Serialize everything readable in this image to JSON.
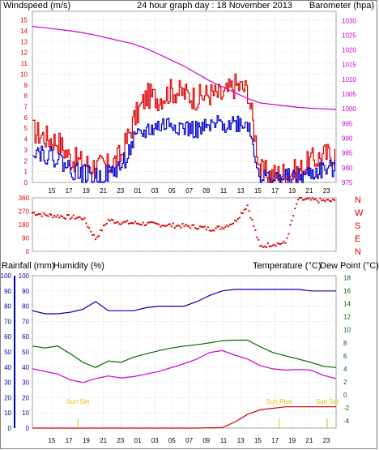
{
  "colors": {
    "wind_speed": "#dd0000",
    "wind_gust": "#0000cc",
    "barometer": "#cc00cc",
    "direction": "#dd0000",
    "rain": "#cc0000",
    "humidity": "#0000aa",
    "temperature": "#006600",
    "dew_point": "#cc00cc",
    "sun": "#e8c000",
    "grid": "#c8c8c8",
    "frame": "#a0a0a0"
  },
  "header": {
    "left": "Windspeed (m/s)",
    "center": "24 hour graph day : 18 November 2013",
    "right": "Barometer (hpa)"
  },
  "x_ticks": [
    "15",
    "17",
    "19",
    "21",
    "23",
    "01",
    "03",
    "05",
    "07",
    "09",
    "11",
    "13",
    "15",
    "17",
    "19",
    "21",
    "23"
  ],
  "chart_data": [
    {
      "type": "line",
      "title": "24 hour graph day : 18 November 2013",
      "ylabel_left": "Windspeed (m/s)",
      "ylabel_right": "Barometer (hpa)",
      "y_left_ticks": [
        "15",
        "14",
        "13",
        "12",
        "11",
        "10",
        "9",
        "8",
        "7",
        "6",
        "5",
        "4",
        "3",
        "2",
        "1",
        "0"
      ],
      "y_right_ticks": [
        "1030",
        "1025",
        "1020",
        "1015",
        "1010",
        "1005",
        "1000",
        "995",
        "990",
        "985",
        "980",
        "975"
      ],
      "ylim_left": [
        0,
        15.5
      ],
      "ylim_right": [
        975,
        1032
      ],
      "x": [
        13,
        14,
        15,
        16,
        17,
        18,
        19,
        20,
        21,
        22,
        23,
        24,
        25,
        26,
        27,
        28,
        29,
        30,
        31,
        32,
        33,
        34,
        35,
        36,
        37
      ],
      "series": [
        {
          "axis": "left",
          "values": [
            4.8,
            4.2,
            3.8,
            2.2,
            1.8,
            1.5,
            1.5,
            2.5,
            5.8,
            8.0,
            7.8,
            8.5,
            8.2,
            7.8,
            8.2,
            8.0,
            9.0,
            8.5,
            1.0,
            0.7,
            0.9,
            1.0,
            2.0,
            2.5,
            2.7
          ]
        },
        {
          "axis": "left",
          "values": [
            3.2,
            2.6,
            2.2,
            1.2,
            0.8,
            0.5,
            0.8,
            1.5,
            3.8,
            4.8,
            5.2,
            5.5,
            5.0,
            4.8,
            5.0,
            5.5,
            5.5,
            5.5,
            0.4,
            0.3,
            0.4,
            0.4,
            0.8,
            1.2,
            1.2
          ]
        },
        {
          "axis": "right",
          "values": [
            1028,
            1027.5,
            1027,
            1026.5,
            1025.8,
            1025,
            1024,
            1023,
            1022,
            1020.5,
            1018.5,
            1016.5,
            1014.5,
            1012,
            1009.5,
            1007.5,
            1005.5,
            1003.5,
            1002,
            1001.5,
            1001,
            1000.5,
            1000.2,
            1000,
            999.8
          ]
        }
      ]
    },
    {
      "type": "scatter",
      "ylabel_right": [
        "N",
        "W",
        "S",
        "E",
        "N"
      ],
      "y_ticks": [
        "360",
        "270",
        "180",
        "90",
        "0"
      ],
      "ylim": [
        0,
        360
      ],
      "x": [
        13,
        14,
        15,
        16,
        17,
        18,
        19,
        20,
        21,
        22,
        23,
        24,
        25,
        26,
        27,
        28,
        29,
        30,
        31,
        32,
        33,
        34,
        35,
        36,
        37
      ],
      "series": [
        {
          "values": [
            260,
            245,
            238,
            230,
            225,
            85,
            210,
            195,
            190,
            185,
            180,
            175,
            170,
            165,
            150,
            160,
            200,
            310,
            30,
            50,
            55,
            350,
            345,
            340,
            338
          ]
        }
      ]
    },
    {
      "type": "line",
      "ylabel_left": "Rainfall (mm)",
      "ylabel_left2": "Humidity (%)",
      "ylabel_right": "Temperature (°C)",
      "ylabel_right2": "Dew Point (°C)",
      "y_left_ticks": [
        "100",
        "90",
        "80",
        "70",
        "60",
        "50",
        "40",
        "30",
        "20",
        "10",
        "0"
      ],
      "y_right_ticks": [
        "18",
        "16",
        "14",
        "12",
        "10",
        "8",
        "6",
        "4",
        "2",
        "0",
        "-2",
        "-4"
      ],
      "ylim_left": [
        0,
        100
      ],
      "ylim_right": [
        -5.1,
        18.3
      ],
      "x": [
        13,
        14,
        15,
        16,
        17,
        18,
        19,
        20,
        21,
        22,
        23,
        24,
        25,
        26,
        27,
        28,
        29,
        30,
        31,
        32,
        33,
        34,
        35,
        36,
        37
      ],
      "series": [
        {
          "axis": "left",
          "values": [
            0,
            0,
            0,
            0,
            0,
            0,
            0,
            0,
            0,
            0,
            0,
            0,
            0,
            0,
            0.2,
            0.3,
            4,
            9,
            12,
            13,
            14,
            14,
            14,
            14,
            14
          ]
        },
        {
          "axis": "left",
          "values": [
            77,
            75,
            75,
            76,
            78,
            83,
            77,
            77,
            77,
            79,
            80,
            80,
            80,
            83,
            87,
            90,
            91,
            91,
            91,
            91,
            91,
            91,
            90,
            90,
            90
          ]
        },
        {
          "axis": "right",
          "values": [
            7.5,
            7.2,
            7.5,
            6.3,
            5.0,
            4.2,
            5.2,
            5.0,
            5.8,
            6.3,
            6.8,
            7.2,
            7.5,
            7.7,
            8.0,
            8.3,
            8.4,
            8.4,
            7.4,
            6.5,
            6.0,
            5.5,
            5.0,
            4.4,
            4.2
          ]
        },
        {
          "axis": "right",
          "values": [
            4.0,
            3.6,
            3.2,
            2.3,
            1.9,
            2.5,
            2.9,
            2.6,
            2.8,
            3.2,
            3.6,
            4.2,
            4.8,
            5.5,
            6.5,
            6.8,
            6.1,
            5.5,
            4.5,
            4.0,
            3.8,
            3.9,
            3.8,
            3.0,
            2.5
          ]
        }
      ],
      "annotations": [
        "Sun Set",
        "Sun Rise",
        "Sun Set"
      ]
    }
  ]
}
